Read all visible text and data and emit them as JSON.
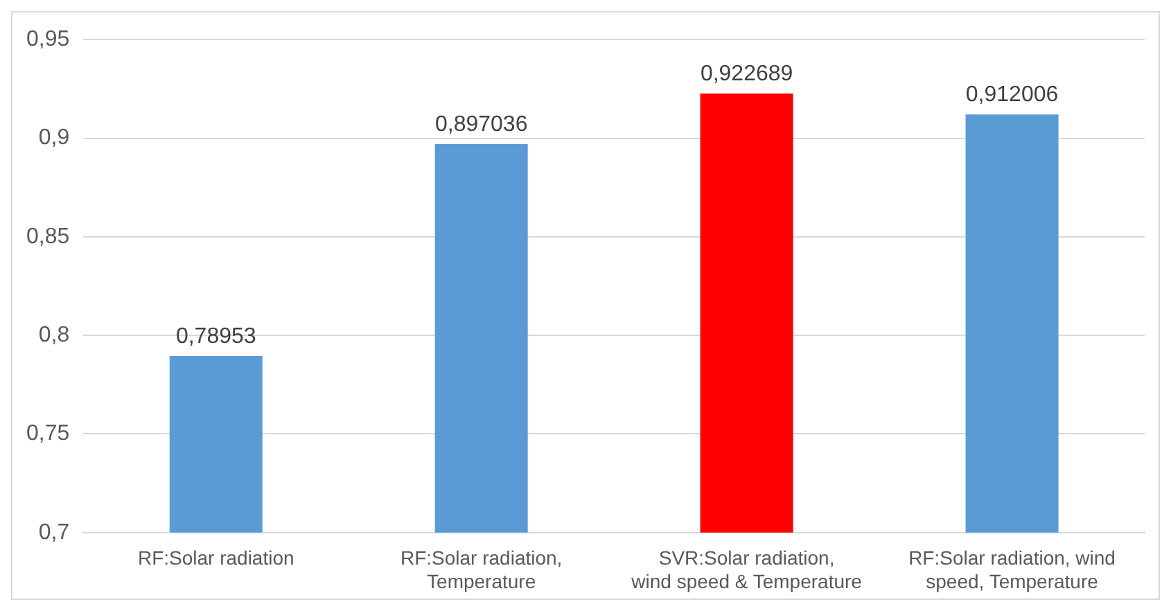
{
  "chart_data": {
    "type": "bar",
    "categories": [
      "RF:Solar radiation",
      "RF:Solar radiation, Temperature",
      "SVR:Solar radiation, wind speed & Temperature",
      "RF:Solar radiation, wind speed, Temperature"
    ],
    "values": [
      0.78953,
      0.897036,
      0.922689,
      0.912006
    ],
    "colors": [
      "#5b9bd5",
      "#5b9bd5",
      "#ff0000",
      "#5b9bd5"
    ],
    "value_labels": [
      "0,78953",
      "0,897036",
      "0,922689",
      "0,912006"
    ],
    "ylim": [
      0.7,
      0.95
    ],
    "yticks": [
      {
        "value": 0.7,
        "label": "0,7"
      },
      {
        "value": 0.75,
        "label": "0,75"
      },
      {
        "value": 0.8,
        "label": "0,8"
      },
      {
        "value": 0.85,
        "label": "0,85"
      },
      {
        "value": 0.9,
        "label": "0,9"
      },
      {
        "value": 0.95,
        "label": "0,95"
      }
    ],
    "grid": "y"
  }
}
